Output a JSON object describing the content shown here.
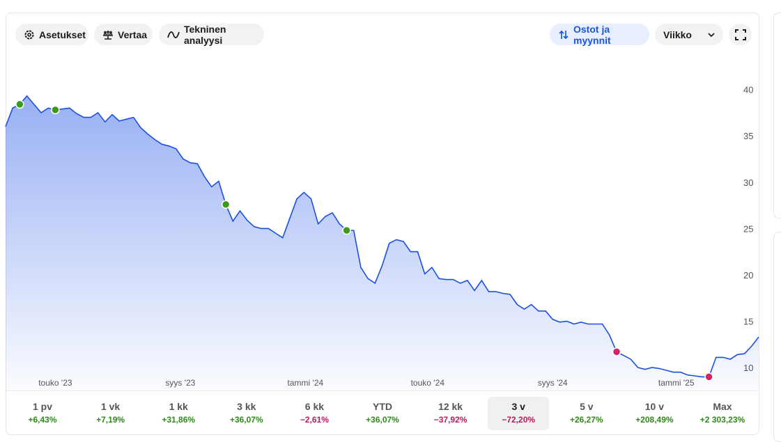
{
  "toolbar": {
    "settings": "Asetukset",
    "compare": "Vertaa",
    "technical": "Tekninen analyysi",
    "trades": "Ostot ja myynnit",
    "interval": "Viikko"
  },
  "chart_data": {
    "type": "line",
    "x": [
      0,
      1,
      2,
      3,
      4,
      5,
      6,
      7,
      8,
      9,
      10,
      11,
      12,
      13,
      14,
      15,
      16,
      17,
      18,
      19,
      20,
      21,
      22,
      23,
      24,
      25,
      26,
      27,
      28,
      29,
      30,
      31,
      32,
      33,
      34,
      35,
      36,
      37,
      38,
      39,
      40,
      41,
      42,
      43,
      44,
      45,
      46,
      47,
      48,
      49,
      50,
      51,
      52,
      53,
      54,
      55,
      56,
      57,
      58,
      59,
      60,
      61,
      62,
      63,
      64,
      65,
      66,
      67,
      68,
      69,
      70,
      71,
      72,
      73,
      74,
      75,
      76,
      77,
      78,
      79,
      80,
      81,
      82,
      83,
      84,
      85,
      86,
      87,
      88,
      89,
      90,
      91,
      92,
      93,
      94,
      95,
      96,
      97,
      98,
      99,
      100,
      101,
      102,
      103,
      104,
      105,
      106
    ],
    "series": [
      {
        "color": "#1a4fe6",
        "values": [
          36.0,
          38.0,
          38.4,
          39.3,
          38.4,
          37.5,
          38.0,
          37.8,
          37.9,
          38.0,
          37.4,
          37.0,
          37.0,
          37.5,
          36.5,
          37.3,
          36.6,
          36.8,
          37.0,
          35.9,
          35.2,
          34.6,
          34.1,
          33.9,
          33.6,
          32.5,
          32.1,
          32.0,
          30.6,
          29.5,
          30.1,
          27.6,
          25.8,
          26.9,
          25.9,
          25.2,
          25.0,
          25.0,
          24.5,
          24.0,
          26.1,
          28.2,
          28.9,
          28.2,
          25.5,
          26.3,
          26.7,
          25.5,
          24.8,
          24.8,
          20.8,
          19.6,
          19.1,
          21.0,
          23.4,
          23.8,
          23.6,
          22.5,
          22.5,
          20.1,
          20.8,
          19.6,
          19.5,
          19.5,
          19.1,
          19.4,
          18.3,
          19.4,
          18.2,
          18.2,
          18.0,
          17.9,
          16.8,
          16.3,
          16.8,
          16.1,
          16.1,
          15.2,
          14.9,
          15.0,
          14.7,
          14.9,
          14.7,
          14.7,
          14.7,
          13.5,
          11.7,
          11.3,
          10.9,
          10.0,
          9.8,
          10.0,
          9.9,
          9.7,
          9.5,
          9.5,
          9.2,
          9.1,
          9.0,
          9.0,
          11.1,
          11.1,
          10.9,
          11.4,
          11.5,
          12.3,
          13.3
        ]
      }
    ],
    "markers": [
      {
        "color": "#3c9a1a",
        "x": [
          2,
          7,
          31,
          48
        ],
        "values": [
          38.4,
          37.8,
          27.6,
          24.8
        ]
      },
      {
        "color": "#d4236b",
        "x": [
          86,
          99
        ],
        "values": [
          11.7,
          9.0
        ]
      }
    ],
    "xlim": [
      0,
      106
    ],
    "xticks": [
      {
        "value": 7,
        "label": "touko '23"
      },
      {
        "value": 24.6,
        "label": "syys '23"
      },
      {
        "value": 42.2,
        "label": "tammi '24"
      },
      {
        "value": 59.4,
        "label": "touko '24"
      },
      {
        "value": 77,
        "label": "syys '24"
      },
      {
        "value": 94.4,
        "label": "tammi '25"
      }
    ],
    "ylim": [
      7.6,
      42.9
    ],
    "yticks": [
      10,
      15,
      20,
      25,
      30,
      35,
      40
    ]
  },
  "periods": [
    {
      "label": "1 pv",
      "change": "+6,43%"
    },
    {
      "label": "1 vk",
      "change": "+7,19%"
    },
    {
      "label": "1 kk",
      "change": "+31,86%"
    },
    {
      "label": "3 kk",
      "change": "+36,07%"
    },
    {
      "label": "6 kk",
      "change": "−2,61%"
    },
    {
      "label": "YTD",
      "change": "+36,07%"
    },
    {
      "label": "12 kk",
      "change": "−37,92%"
    },
    {
      "label": "3 v",
      "change": "−72,20%"
    },
    {
      "label": "5 v",
      "change": "+26,27%"
    },
    {
      "label": "10 v",
      "change": "+208,49%"
    },
    {
      "label": "Max",
      "change": "+2 303,23%"
    }
  ],
  "selected_period": 7
}
